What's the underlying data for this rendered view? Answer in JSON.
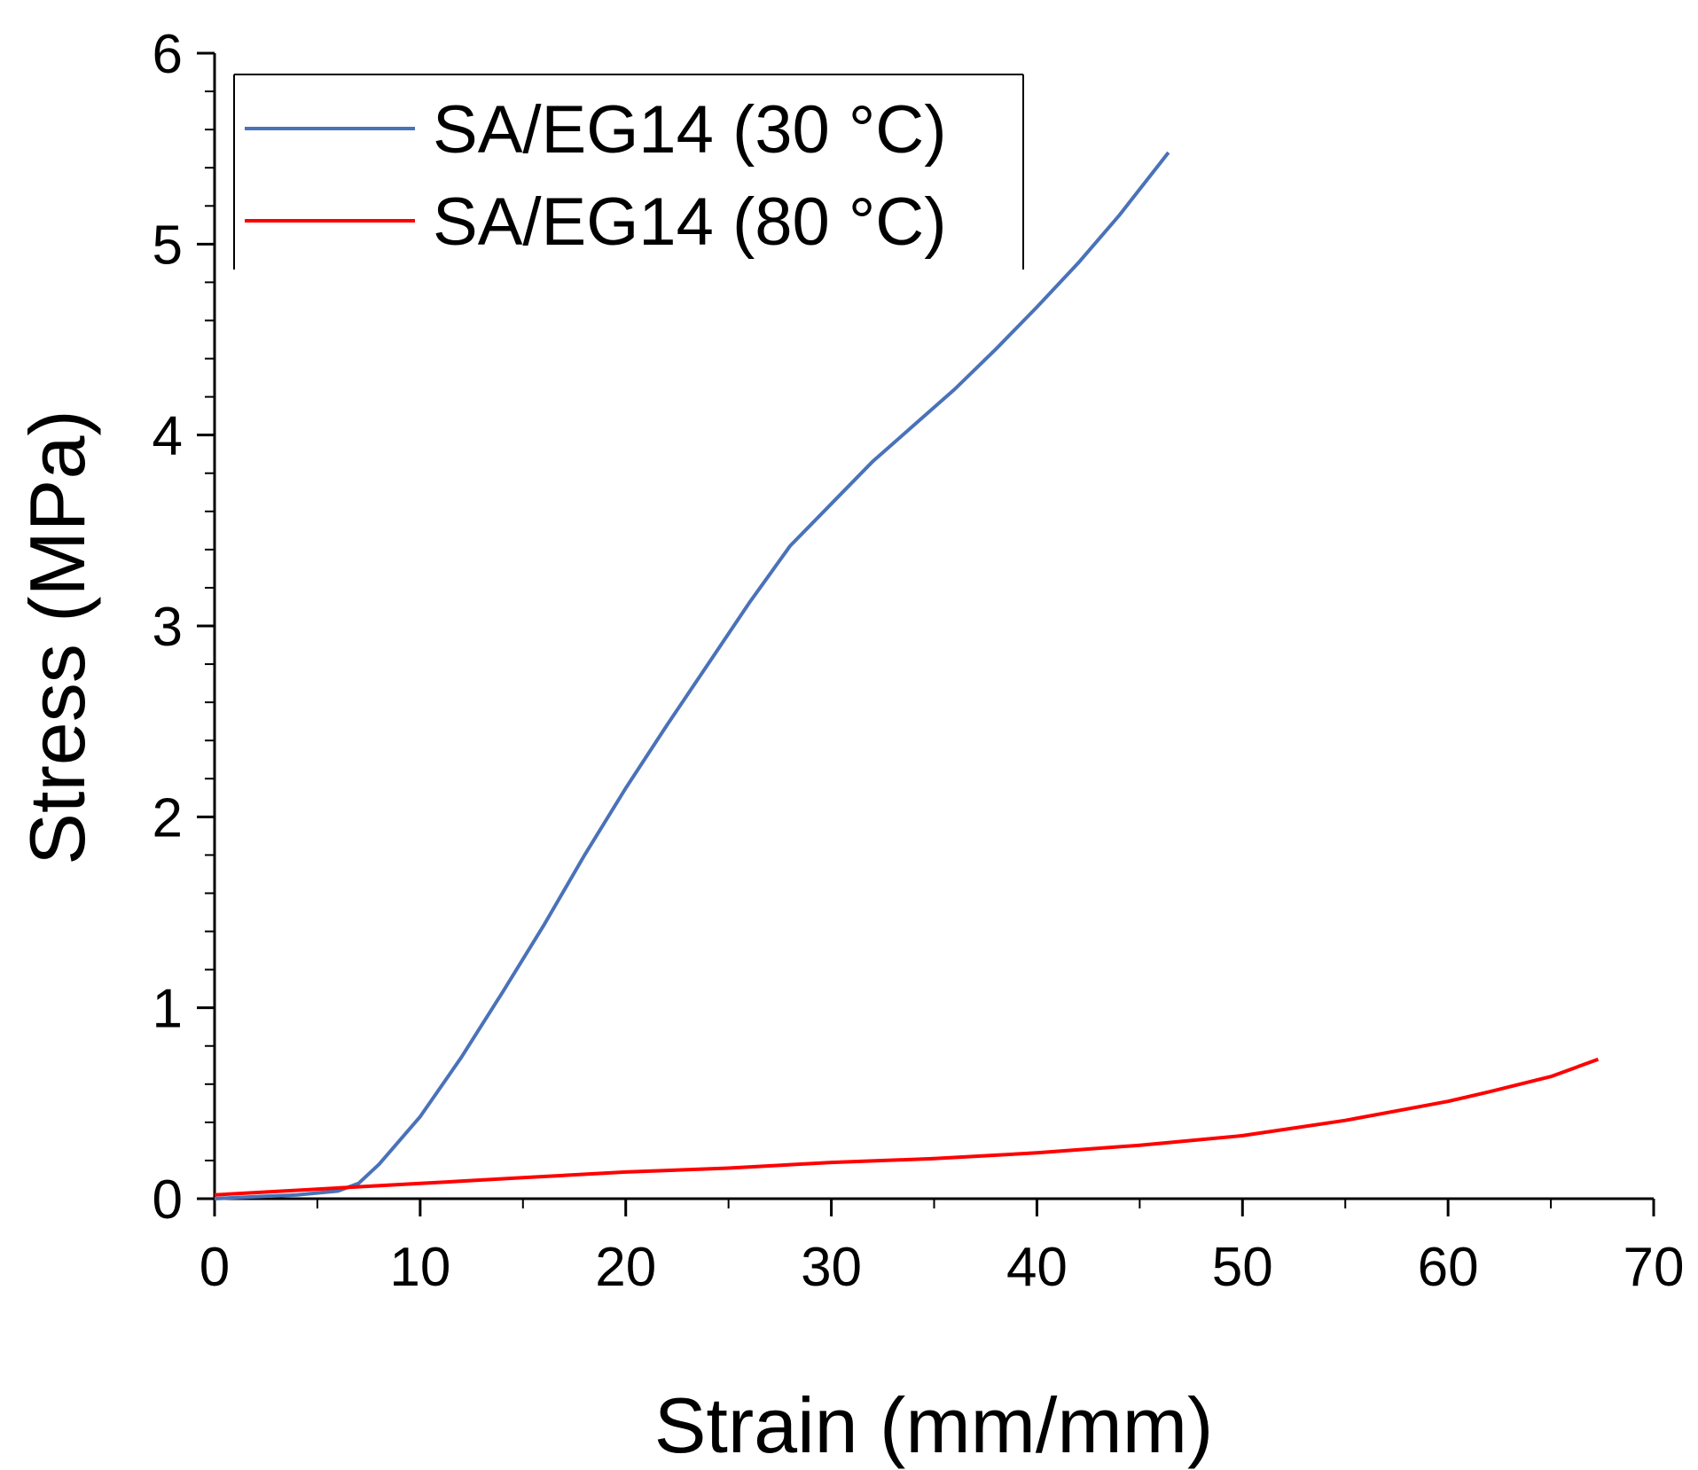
{
  "chart_data": {
    "type": "line",
    "title": "",
    "xlabel": "Strain (mm/mm)",
    "ylabel": "Stress (MPa)",
    "xlim": [
      0,
      70
    ],
    "ylim": [
      0,
      6
    ],
    "xticks": [
      0,
      10,
      20,
      30,
      40,
      50,
      60,
      70
    ],
    "yticks": [
      0,
      1,
      2,
      3,
      4,
      5,
      6
    ],
    "xtick_labels": [
      "0",
      "10",
      "20",
      "30",
      "40",
      "50",
      "60",
      "70"
    ],
    "ytick_labels": [
      "0",
      "1",
      "2",
      "3",
      "4",
      "5",
      "6"
    ],
    "grid": false,
    "legend_position": "top-left",
    "series": [
      {
        "name": "SA/EG14 (30 °C)",
        "color": "#4a72b8",
        "x": [
          0,
          2,
          4,
          6,
          7,
          8,
          10,
          12,
          14,
          16,
          18,
          20,
          22,
          24,
          26,
          27,
          28,
          30,
          32,
          34,
          36,
          38,
          40,
          42,
          44,
          46.4
        ],
        "y": [
          0,
          0.01,
          0.02,
          0.04,
          0.08,
          0.18,
          0.43,
          0.74,
          1.08,
          1.43,
          1.8,
          2.15,
          2.48,
          2.8,
          3.12,
          3.27,
          3.42,
          3.64,
          3.86,
          4.05,
          4.24,
          4.45,
          4.67,
          4.9,
          5.15,
          5.48
        ]
      },
      {
        "name": "SA/EG14 (80 °C)",
        "color": "#ff0000",
        "x": [
          0,
          5,
          10,
          15,
          20,
          25,
          30,
          35,
          40,
          45,
          50,
          55,
          58,
          60,
          62,
          65,
          67.3
        ],
        "y": [
          0.02,
          0.05,
          0.08,
          0.11,
          0.14,
          0.16,
          0.19,
          0.21,
          0.24,
          0.28,
          0.33,
          0.41,
          0.47,
          0.51,
          0.56,
          0.64,
          0.73
        ]
      }
    ]
  }
}
